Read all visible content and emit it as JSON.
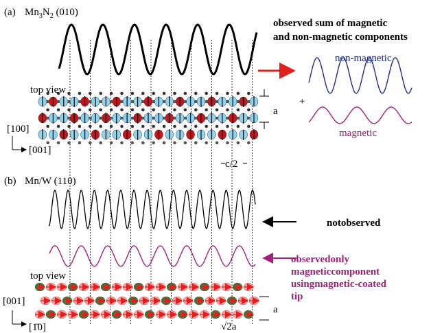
{
  "panel_a": {
    "label": "(a)",
    "formula": [
      "Mn",
      "3",
      "N",
      "2",
      " (010)"
    ],
    "top_view": "top view",
    "lattice_a": "a",
    "axis_vertical": "[100]",
    "axis_horizontal": "[001]",
    "spacing": "c/2"
  },
  "legend": {
    "heading": [
      "observed sum of magnetic",
      "and non-magnetic components"
    ],
    "non_magnetic": "non-magnetic",
    "plus": "+",
    "magnetic": "magnetic"
  },
  "panel_b": {
    "label": "(b)",
    "title": "Mn/W (110)",
    "not_observed": "notobserved",
    "observed_only": [
      "observedonly",
      "magneticcomponent",
      "usingmagnetic-coated",
      "tip"
    ],
    "top_view": "top view",
    "axis_vertical": "[001]",
    "axis_horizontal": "[1̄0]",
    "lattice_a": "a",
    "spacing": "√2a"
  }
}
